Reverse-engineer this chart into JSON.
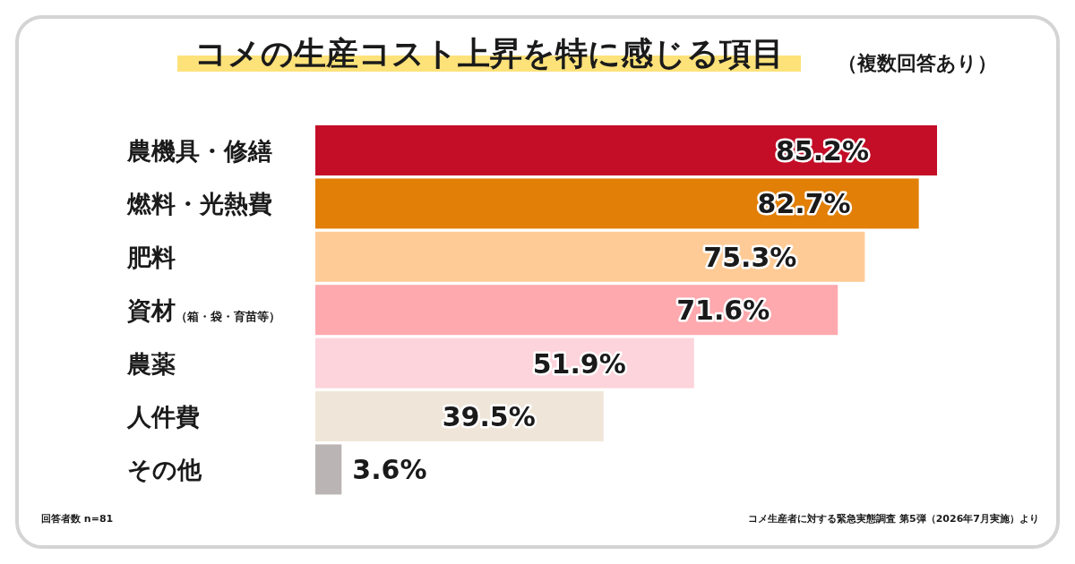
{
  "chart_data": {
    "type": "bar",
    "orientation": "horizontal",
    "title": "コメの生産コスト上昇を特に感じる項目",
    "subtitle": "（複数回答あり）",
    "categories": [
      "農機具・修繕",
      "燃料・光熱費",
      "肥料",
      "資材$_{（箱・袋・育苗等）}$",
      "農薬",
      "人件費",
      "その他"
    ],
    "values": [
      85.2,
      82.7,
      75.3,
      71.6,
      51.9,
      39.5,
      3.6
    ],
    "colors": [
      "#c40d27",
      "#e27f06",
      "#fecb96",
      "#fda9ae",
      "#fdd4db",
      "#efe6d9",
      "#bab5b4"
    ],
    "value_labels": [
      "85.2%",
      "82.7%",
      "75.3%",
      "71.6%",
      "51.9%",
      "39.5%",
      "3.6%"
    ],
    "annotations": [
      "回答者数 n=81",
      "コメ生産者に対する緊急実態調査 第5弾（2026年7月実施）より"
    ]
  }
}
